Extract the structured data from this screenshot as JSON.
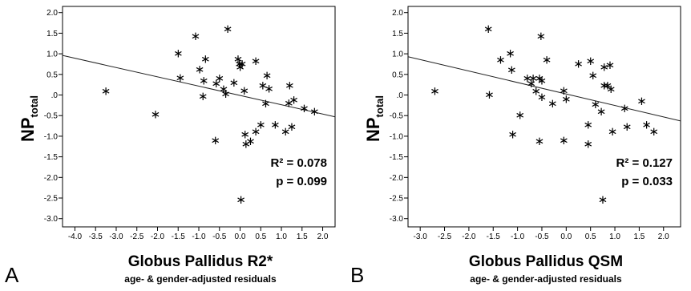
{
  "chart_data": [
    {
      "type": "scatter",
      "panel_letter": "A",
      "xlabel": "Globus Pallidus R2*",
      "xlabel_sub": "age- & gender-adjusted residuals",
      "ylabel": "NP",
      "ylabel_sub": "total",
      "xlim": [
        -4.3,
        2.3
      ],
      "ylim": [
        -3.2,
        2.15
      ],
      "xticks": [
        "-4.0",
        "-3.5",
        "-3.0",
        "-2.5",
        "-2.0",
        "-1.5",
        "-1.0",
        "-0.5",
        "0.0",
        "0.5",
        "1.0",
        "1.5",
        "2.0"
      ],
      "yticks": [
        "2.0",
        "1.5",
        "1.0",
        "0.5",
        ".0",
        "-0.5",
        "-1.0",
        "-1.5",
        "-2.0",
        "-2.5",
        "-3.0"
      ],
      "stat_r2": "R² = 0.078",
      "stat_p": "p = 0.099",
      "fit_line": {
        "x": [
          -4.3,
          2.3
        ],
        "y": [
          0.96,
          -0.53
        ]
      },
      "points": [
        [
          -3.25,
          0.12
        ],
        [
          -2.05,
          -0.45
        ],
        [
          -1.5,
          1.03
        ],
        [
          -1.45,
          0.44
        ],
        [
          -1.08,
          1.45
        ],
        [
          -0.98,
          0.64
        ],
        [
          -0.9,
          -0.01
        ],
        [
          -0.88,
          0.37
        ],
        [
          -0.84,
          0.9
        ],
        [
          -0.6,
          -1.08
        ],
        [
          -0.58,
          0.3
        ],
        [
          -0.5,
          0.43
        ],
        [
          -0.4,
          0.17
        ],
        [
          -0.35,
          0.05
        ],
        [
          -0.3,
          1.62
        ],
        [
          -0.15,
          0.32
        ],
        [
          -0.05,
          0.9
        ],
        [
          -0.02,
          0.78
        ],
        [
          0.0,
          0.7
        ],
        [
          0.02,
          -2.52
        ],
        [
          0.05,
          0.78
        ],
        [
          0.1,
          0.13
        ],
        [
          0.12,
          -0.93
        ],
        [
          0.14,
          -1.17
        ],
        [
          0.25,
          -1.1
        ],
        [
          0.38,
          0.85
        ],
        [
          0.38,
          -0.87
        ],
        [
          0.5,
          -0.7
        ],
        [
          0.55,
          0.25
        ],
        [
          0.62,
          -0.18
        ],
        [
          0.65,
          0.5
        ],
        [
          0.7,
          0.18
        ],
        [
          0.85,
          -0.7
        ],
        [
          1.1,
          -0.87
        ],
        [
          1.18,
          -0.17
        ],
        [
          1.2,
          0.25
        ],
        [
          1.25,
          -0.75
        ],
        [
          1.3,
          -0.1
        ],
        [
          1.55,
          -0.3
        ],
        [
          1.8,
          -0.38
        ]
      ]
    },
    {
      "type": "scatter",
      "panel_letter": "B",
      "xlabel": "Globus Pallidus QSM",
      "xlabel_sub": "age- & gender-adjusted residuals",
      "ylabel": "NP",
      "ylabel_sub": "total",
      "xlim": [
        -3.25,
        2.35
      ],
      "ylim": [
        -3.2,
        2.15
      ],
      "xticks": [
        "-3.0",
        "-2.5",
        "-2.0",
        "-1.5",
        "-1.0",
        "-0.5",
        "0.0",
        "0.5",
        "1.0",
        "1.5",
        "2.0"
      ],
      "yticks": [
        "2.0",
        "1.5",
        "1.0",
        "0.5",
        ".0",
        "-0.5",
        "-1.0",
        "-1.5",
        "-2.0",
        "-2.5",
        "-3.0"
      ],
      "stat_r2": "R² = 0.127",
      "stat_p": "p = 0.033",
      "fit_line": {
        "x": [
          -3.25,
          2.35
        ],
        "y": [
          0.93,
          -0.63
        ]
      },
      "points": [
        [
          -2.7,
          0.12
        ],
        [
          -1.6,
          1.62
        ],
        [
          -1.58,
          0.03
        ],
        [
          -1.35,
          0.88
        ],
        [
          -1.15,
          1.03
        ],
        [
          -1.12,
          0.63
        ],
        [
          -1.1,
          -0.93
        ],
        [
          -0.95,
          -0.47
        ],
        [
          -0.8,
          0.43
        ],
        [
          -0.72,
          0.3
        ],
        [
          -0.68,
          0.43
        ],
        [
          -0.62,
          0.12
        ],
        [
          -0.55,
          0.43
        ],
        [
          -0.55,
          -1.1
        ],
        [
          -0.52,
          1.45
        ],
        [
          -0.5,
          0.37
        ],
        [
          -0.5,
          -0.03
        ],
        [
          -0.4,
          0.88
        ],
        [
          -0.28,
          -0.18
        ],
        [
          -0.05,
          0.13
        ],
        [
          -0.05,
          -1.08
        ],
        [
          0.0,
          -0.08
        ],
        [
          0.25,
          0.78
        ],
        [
          0.45,
          -0.7
        ],
        [
          0.45,
          -1.17
        ],
        [
          0.5,
          0.85
        ],
        [
          0.55,
          0.5
        ],
        [
          0.6,
          -0.2
        ],
        [
          0.72,
          -0.38
        ],
        [
          0.75,
          -2.52
        ],
        [
          0.78,
          0.25
        ],
        [
          0.78,
          0.7
        ],
        [
          0.85,
          0.25
        ],
        [
          0.9,
          0.75
        ],
        [
          0.92,
          0.17
        ],
        [
          0.95,
          -0.87
        ],
        [
          1.2,
          -0.3
        ],
        [
          1.25,
          -0.75
        ],
        [
          1.55,
          -0.13
        ],
        [
          1.65,
          -0.7
        ],
        [
          1.8,
          -0.87
        ]
      ]
    }
  ]
}
